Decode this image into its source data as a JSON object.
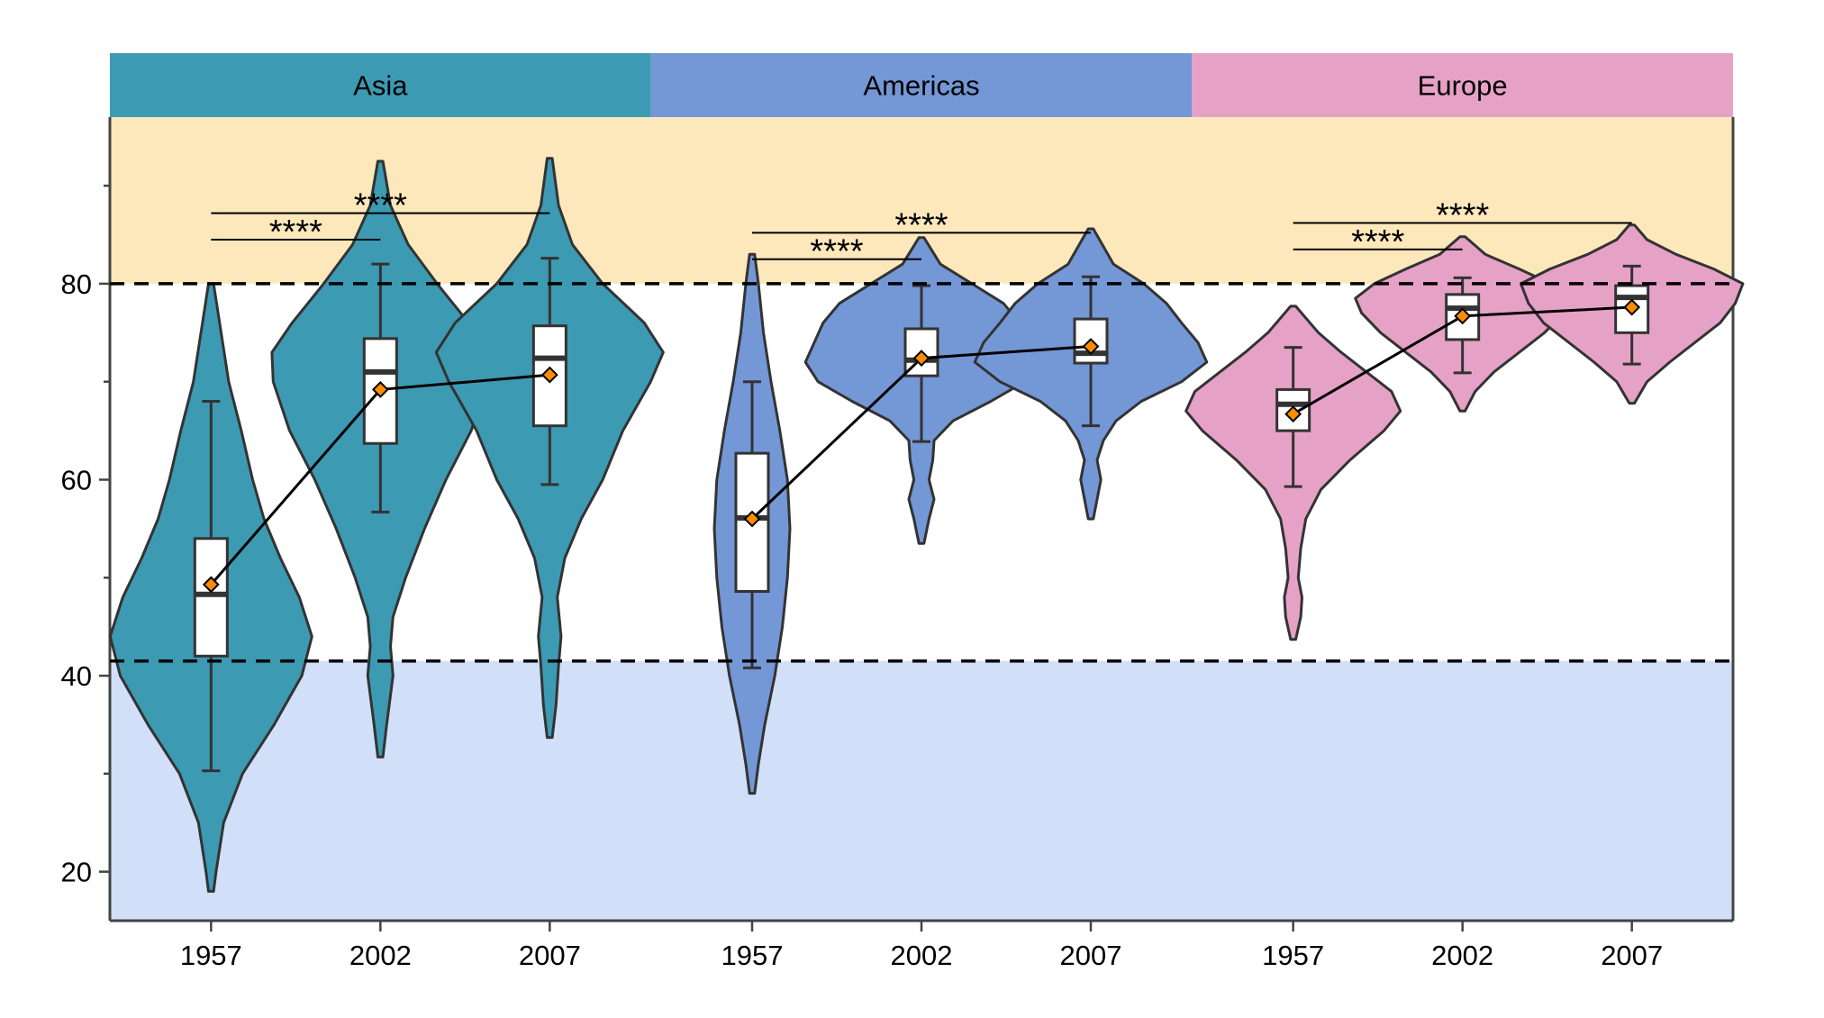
{
  "chart_data": {
    "type": "violin",
    "facets": [
      "Asia",
      "Americas",
      "Europe"
    ],
    "facet_colors": {
      "Asia": "#3d9ab3",
      "Americas": "#7497d6",
      "Europe": "#e6a2c6"
    },
    "x_categories": [
      "1957",
      "2002",
      "2007"
    ],
    "ylim": [
      15,
      97
    ],
    "yticks": [
      20,
      40,
      60,
      80
    ],
    "minor_yticks": [
      30,
      50,
      70,
      90
    ],
    "xlabel": "",
    "ylabel": "",
    "bands": [
      {
        "from": 80,
        "to": 97,
        "color": "#fde8bb"
      },
      {
        "from": 15,
        "to": 41.5,
        "color": "#d2dff8"
      }
    ],
    "reference_lines": [
      80,
      41.5
    ],
    "mean_marker_color": "#ff8c00",
    "significance": [
      {
        "facet": "Asia",
        "from": "1957",
        "to": "2002",
        "label": "****",
        "y": 84.5
      },
      {
        "facet": "Asia",
        "from": "1957",
        "to": "2007",
        "label": "****",
        "y": 87.2
      },
      {
        "facet": "Americas",
        "from": "1957",
        "to": "2002",
        "label": "****",
        "y": 82.5
      },
      {
        "facet": "Americas",
        "from": "1957",
        "to": "2007",
        "label": "****",
        "y": 85.2
      },
      {
        "facet": "Europe",
        "from": "1957",
        "to": "2002",
        "label": "****",
        "y": 83.5
      },
      {
        "facet": "Europe",
        "from": "1957",
        "to": "2007",
        "label": "****",
        "y": 86.2
      }
    ],
    "groups": [
      {
        "facet": "Asia",
        "year": "1957",
        "min": 18.0,
        "max": 80.0,
        "box": {
          "whisker_low": 30.3,
          "q1": 42.0,
          "median": 48.3,
          "q3": 54.0,
          "whisker_high": 68.0
        },
        "mean": 49.3,
        "density": [
          [
            18,
            0.02
          ],
          [
            20,
            0.04
          ],
          [
            25,
            0.1
          ],
          [
            30,
            0.25
          ],
          [
            35,
            0.5
          ],
          [
            40,
            0.72
          ],
          [
            44,
            0.8
          ],
          [
            48,
            0.7
          ],
          [
            52,
            0.55
          ],
          [
            56,
            0.42
          ],
          [
            60,
            0.33
          ],
          [
            65,
            0.24
          ],
          [
            70,
            0.14
          ],
          [
            75,
            0.08
          ],
          [
            80,
            0.02
          ]
        ]
      },
      {
        "facet": "Asia",
        "year": "2002",
        "min": 31.7,
        "max": 92.5,
        "box": {
          "whisker_low": 56.7,
          "q1": 63.7,
          "median": 71.0,
          "q3": 74.4,
          "whisker_high": 82.0
        },
        "mean": 69.2,
        "density": [
          [
            31.7,
            0.02
          ],
          [
            35,
            0.05
          ],
          [
            38,
            0.08
          ],
          [
            40,
            0.1
          ],
          [
            43,
            0.08
          ],
          [
            46,
            0.1
          ],
          [
            50,
            0.2
          ],
          [
            55,
            0.35
          ],
          [
            60,
            0.52
          ],
          [
            65,
            0.72
          ],
          [
            70,
            0.85
          ],
          [
            73,
            0.86
          ],
          [
            76,
            0.7
          ],
          [
            80,
            0.45
          ],
          [
            84,
            0.22
          ],
          [
            88,
            0.08
          ],
          [
            92.5,
            0.02
          ]
        ]
      },
      {
        "facet": "Asia",
        "year": "2007",
        "min": 33.7,
        "max": 92.8,
        "box": {
          "whisker_low": 59.5,
          "q1": 65.5,
          "median": 72.4,
          "q3": 75.7,
          "whisker_high": 82.6
        },
        "mean": 70.7,
        "density": [
          [
            33.7,
            0.02
          ],
          [
            37,
            0.05
          ],
          [
            41,
            0.07
          ],
          [
            44,
            0.09
          ],
          [
            48,
            0.06
          ],
          [
            52,
            0.12
          ],
          [
            56,
            0.25
          ],
          [
            60,
            0.42
          ],
          [
            65,
            0.58
          ],
          [
            70,
            0.8
          ],
          [
            73,
            0.9
          ],
          [
            76,
            0.75
          ],
          [
            80,
            0.42
          ],
          [
            84,
            0.18
          ],
          [
            88,
            0.07
          ],
          [
            92.8,
            0.02
          ]
        ]
      },
      {
        "facet": "Americas",
        "year": "1957",
        "min": 28.0,
        "max": 83.0,
        "box": {
          "whisker_low": 40.8,
          "q1": 48.6,
          "median": 56.1,
          "q3": 62.7,
          "whisker_high": 70.0
        },
        "mean": 56.0,
        "density": [
          [
            28,
            0.02
          ],
          [
            31,
            0.05
          ],
          [
            35,
            0.1
          ],
          [
            40,
            0.18
          ],
          [
            45,
            0.24
          ],
          [
            50,
            0.28
          ],
          [
            55,
            0.3
          ],
          [
            60,
            0.28
          ],
          [
            65,
            0.22
          ],
          [
            70,
            0.15
          ],
          [
            75,
            0.09
          ],
          [
            80,
            0.05
          ],
          [
            83,
            0.02
          ]
        ]
      },
      {
        "facet": "Americas",
        "year": "2002",
        "min": 53.5,
        "max": 84.7,
        "box": {
          "whisker_low": 63.9,
          "q1": 70.6,
          "median": 72.2,
          "q3": 75.4,
          "whisker_high": 79.8
        },
        "mean": 72.4,
        "density": [
          [
            53.5,
            0.02
          ],
          [
            56,
            0.06
          ],
          [
            58,
            0.1
          ],
          [
            60,
            0.06
          ],
          [
            62,
            0.09
          ],
          [
            64,
            0.1
          ],
          [
            66,
            0.25
          ],
          [
            68,
            0.55
          ],
          [
            70,
            0.82
          ],
          [
            72,
            0.92
          ],
          [
            74,
            0.85
          ],
          [
            76,
            0.78
          ],
          [
            78,
            0.65
          ],
          [
            80,
            0.4
          ],
          [
            82,
            0.15
          ],
          [
            84.7,
            0.02
          ]
        ]
      },
      {
        "facet": "Americas",
        "year": "2007",
        "min": 56.0,
        "max": 85.6,
        "box": {
          "whisker_low": 65.5,
          "q1": 71.9,
          "median": 72.9,
          "q3": 76.4,
          "whisker_high": 80.7
        },
        "mean": 73.6,
        "density": [
          [
            56,
            0.02
          ],
          [
            58,
            0.05
          ],
          [
            60,
            0.08
          ],
          [
            62,
            0.05
          ],
          [
            64,
            0.1
          ],
          [
            66,
            0.2
          ],
          [
            68,
            0.4
          ],
          [
            70,
            0.72
          ],
          [
            72,
            0.92
          ],
          [
            74,
            0.85
          ],
          [
            76,
            0.72
          ],
          [
            78,
            0.6
          ],
          [
            80,
            0.42
          ],
          [
            82,
            0.18
          ],
          [
            85.6,
            0.02
          ]
        ]
      },
      {
        "facet": "Europe",
        "year": "1957",
        "min": 43.7,
        "max": 77.7,
        "box": {
          "whisker_low": 59.3,
          "q1": 65.0,
          "median": 67.7,
          "q3": 69.2,
          "whisker_high": 73.5
        },
        "mean": 66.7,
        "density": [
          [
            43.7,
            0.02
          ],
          [
            46,
            0.06
          ],
          [
            48,
            0.07
          ],
          [
            50,
            0.04
          ],
          [
            53,
            0.06
          ],
          [
            56,
            0.1
          ],
          [
            59,
            0.22
          ],
          [
            62,
            0.45
          ],
          [
            65,
            0.72
          ],
          [
            67,
            0.85
          ],
          [
            69,
            0.78
          ],
          [
            71,
            0.58
          ],
          [
            73,
            0.38
          ],
          [
            75,
            0.2
          ],
          [
            77.7,
            0.02
          ]
        ]
      },
      {
        "facet": "Europe",
        "year": "2002",
        "min": 67.0,
        "max": 84.8,
        "box": {
          "whisker_low": 70.9,
          "q1": 74.3,
          "median": 77.5,
          "q3": 78.9,
          "whisker_high": 80.6
        },
        "mean": 76.7,
        "density": [
          [
            67,
            0.02
          ],
          [
            69,
            0.1
          ],
          [
            71,
            0.25
          ],
          [
            73,
            0.45
          ],
          [
            75,
            0.65
          ],
          [
            77,
            0.8
          ],
          [
            78.5,
            0.85
          ],
          [
            80,
            0.7
          ],
          [
            81.5,
            0.45
          ],
          [
            83,
            0.18
          ],
          [
            84.8,
            0.02
          ]
        ]
      },
      {
        "facet": "Europe",
        "year": "2007",
        "min": 67.8,
        "max": 86.0,
        "box": {
          "whisker_low": 71.8,
          "q1": 75.0,
          "median": 78.6,
          "q3": 79.8,
          "whisker_high": 81.8
        },
        "mean": 77.6,
        "density": [
          [
            67.8,
            0.02
          ],
          [
            70,
            0.12
          ],
          [
            72,
            0.3
          ],
          [
            74,
            0.5
          ],
          [
            76,
            0.7
          ],
          [
            78,
            0.82
          ],
          [
            80,
            0.88
          ],
          [
            81.5,
            0.65
          ],
          [
            83,
            0.35
          ],
          [
            84.5,
            0.12
          ],
          [
            86,
            0.02
          ]
        ]
      }
    ]
  }
}
